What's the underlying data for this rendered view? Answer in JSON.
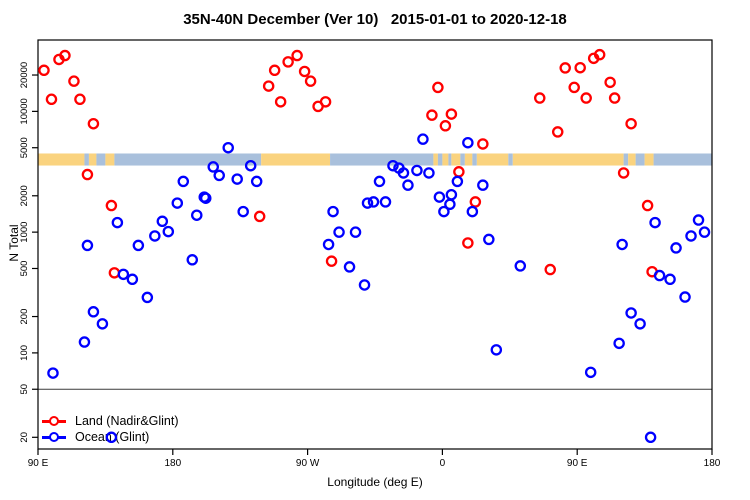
{
  "chart_data": {
    "type": "scatter",
    "title": "35N-40N December (Ver 10)   2015-01-01 to 2020-12-18",
    "xlabel": "Longitude (deg E)",
    "ylabel": "N Total",
    "grid": false,
    "x_axis": {
      "range": [
        90,
        540
      ],
      "ticks": [
        {
          "pos": 90,
          "label": "90 E"
        },
        {
          "pos": 180,
          "label": "180"
        },
        {
          "pos": 270,
          "label": "90 W"
        },
        {
          "pos": 360,
          "label": "0"
        },
        {
          "pos": 450,
          "label": "90 E"
        },
        {
          "pos": 540,
          "label": "180"
        }
      ]
    },
    "y_axis": {
      "scale": "log",
      "range": [
        16,
        39000
      ],
      "ticks": [
        {
          "value": 20,
          "label": "20"
        },
        {
          "value": 50,
          "label": "50"
        },
        {
          "value": 100,
          "label": "100"
        },
        {
          "value": 200,
          "label": "200"
        },
        {
          "value": 500,
          "label": "500"
        },
        {
          "value": 1000,
          "label": "1000"
        },
        {
          "value": 2000,
          "label": "2000"
        },
        {
          "value": 5000,
          "label": "5000"
        },
        {
          "value": 10000,
          "label": "10000"
        },
        {
          "value": 20000,
          "label": "20000"
        }
      ]
    },
    "threshold_line": {
      "value": 50,
      "color": "#3a3a3a"
    },
    "map_band": {
      "n_top": 4480,
      "n_bottom": 3560,
      "land_color": "#FAD37F",
      "ocean_color": "#A9C0DC",
      "segments": [
        {
          "from": 90,
          "to": 121,
          "type": "land"
        },
        {
          "from": 121,
          "to": 124,
          "type": "ocean"
        },
        {
          "from": 124,
          "to": 129,
          "type": "land"
        },
        {
          "from": 129,
          "to": 135,
          "type": "ocean"
        },
        {
          "from": 135,
          "to": 141,
          "type": "land"
        },
        {
          "from": 141,
          "to": 239,
          "type": "ocean"
        },
        {
          "from": 239,
          "to": 285,
          "type": "land"
        },
        {
          "from": 285,
          "to": 354,
          "type": "ocean"
        },
        {
          "from": 354,
          "to": 357,
          "type": "land"
        },
        {
          "from": 357,
          "to": 360,
          "type": "ocean"
        },
        {
          "from": 360,
          "to": 364,
          "type": "land"
        },
        {
          "from": 364,
          "to": 366,
          "type": "ocean"
        },
        {
          "from": 366,
          "to": 372,
          "type": "land"
        },
        {
          "from": 372,
          "to": 375,
          "type": "ocean"
        },
        {
          "from": 375,
          "to": 380,
          "type": "land"
        },
        {
          "from": 380,
          "to": 383,
          "type": "ocean"
        },
        {
          "from": 383,
          "to": 404,
          "type": "land"
        },
        {
          "from": 404,
          "to": 407,
          "type": "ocean"
        },
        {
          "from": 407,
          "to": 481,
          "type": "land"
        },
        {
          "from": 481,
          "to": 484,
          "type": "ocean"
        },
        {
          "from": 484,
          "to": 489,
          "type": "land"
        },
        {
          "from": 489,
          "to": 495,
          "type": "ocean"
        },
        {
          "from": 495,
          "to": 501,
          "type": "land"
        },
        {
          "from": 501,
          "to": 540,
          "type": "ocean"
        }
      ]
    },
    "series": [
      {
        "name": "Land (Nadir&Glint)",
        "color": "#FF0000",
        "marker": "open-circle",
        "points": [
          [
            94,
            21900
          ],
          [
            99,
            12600
          ],
          [
            104,
            26900
          ],
          [
            108,
            29000
          ],
          [
            114,
            17800
          ],
          [
            118,
            12600
          ],
          [
            123,
            3000
          ],
          [
            127,
            7900
          ],
          [
            139,
            1660
          ],
          [
            141,
            460
          ],
          [
            238,
            1350
          ],
          [
            244,
            16200
          ],
          [
            248,
            21900
          ],
          [
            252,
            12000
          ],
          [
            257,
            25700
          ],
          [
            263,
            29000
          ],
          [
            268,
            21400
          ],
          [
            272,
            17800
          ],
          [
            277,
            11000
          ],
          [
            282,
            12000
          ],
          [
            286,
            575
          ],
          [
            353,
            9300
          ],
          [
            357,
            15800
          ],
          [
            362,
            7600
          ],
          [
            366,
            9500
          ],
          [
            371,
            3160
          ],
          [
            377,
            813
          ],
          [
            382,
            1780
          ],
          [
            387,
            5370
          ],
          [
            425,
            12900
          ],
          [
            432,
            490
          ],
          [
            437,
            6760
          ],
          [
            442,
            22900
          ],
          [
            448,
            15800
          ],
          [
            452,
            23000
          ],
          [
            456,
            12900
          ],
          [
            461,
            27500
          ],
          [
            465,
            29500
          ],
          [
            472,
            17400
          ],
          [
            475,
            12900
          ],
          [
            481,
            3090
          ],
          [
            486,
            7900
          ],
          [
            497,
            1660
          ],
          [
            500,
            470
          ]
        ]
      },
      {
        "name": "Ocean (Glint)",
        "color": "#0000FF",
        "marker": "open-circle",
        "points": [
          [
            100,
            68
          ],
          [
            121,
            123
          ],
          [
            123,
            776
          ],
          [
            127,
            219
          ],
          [
            133,
            174
          ],
          [
            139,
            20
          ],
          [
            143,
            1200
          ],
          [
            147,
            447
          ],
          [
            153,
            407
          ],
          [
            157,
            776
          ],
          [
            163,
            288
          ],
          [
            168,
            930
          ],
          [
            173,
            1230
          ],
          [
            177,
            1010
          ],
          [
            183,
            1740
          ],
          [
            187,
            2630
          ],
          [
            193,
            590
          ],
          [
            196,
            1380
          ],
          [
            201,
            1950
          ],
          [
            202,
            1910
          ],
          [
            207,
            3470
          ],
          [
            211,
            2950
          ],
          [
            217,
            5000
          ],
          [
            223,
            2750
          ],
          [
            227,
            1480
          ],
          [
            232,
            3550
          ],
          [
            236,
            2630
          ],
          [
            284,
            790
          ],
          [
            287,
            1480
          ],
          [
            291,
            1000
          ],
          [
            298,
            515
          ],
          [
            302,
            1000
          ],
          [
            308,
            365
          ],
          [
            310,
            1740
          ],
          [
            314,
            1780
          ],
          [
            318,
            2630
          ],
          [
            322,
            1780
          ],
          [
            327,
            3550
          ],
          [
            331,
            3390
          ],
          [
            334,
            3090
          ],
          [
            337,
            2450
          ],
          [
            343,
            3240
          ],
          [
            347,
            5890
          ],
          [
            351,
            3090
          ],
          [
            358,
            1950
          ],
          [
            361,
            1480
          ],
          [
            365,
            1700
          ],
          [
            366,
            2040
          ],
          [
            370,
            2630
          ],
          [
            377,
            5500
          ],
          [
            380,
            1480
          ],
          [
            387,
            2450
          ],
          [
            391,
            870
          ],
          [
            396,
            106
          ],
          [
            412,
            525
          ],
          [
            459,
            69
          ],
          [
            478,
            120
          ],
          [
            480,
            790
          ],
          [
            486,
            214
          ],
          [
            492,
            174
          ],
          [
            499,
            20
          ],
          [
            502,
            1200
          ],
          [
            505,
            437
          ],
          [
            512,
            407
          ],
          [
            516,
            740
          ],
          [
            522,
            290
          ],
          [
            526,
            930
          ],
          [
            531,
            1260
          ],
          [
            535,
            1000
          ]
        ]
      }
    ]
  }
}
